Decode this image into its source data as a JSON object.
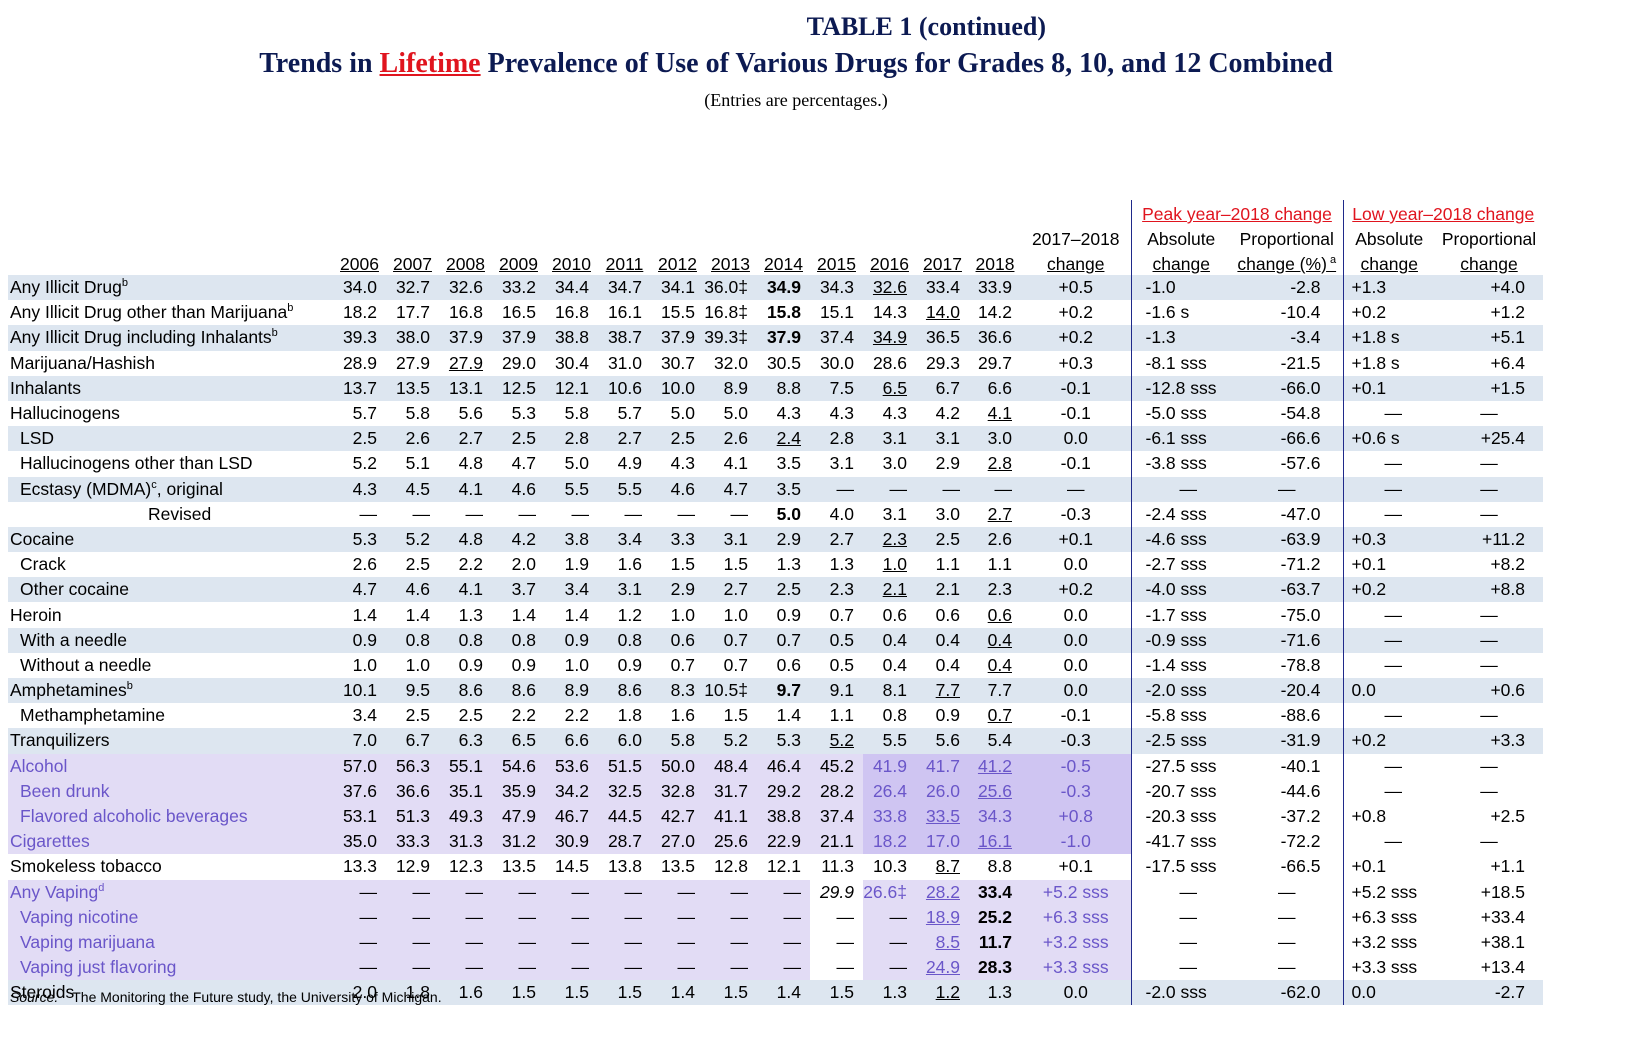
{
  "title": {
    "line1": "TABLE 1 (continued)",
    "line2_pre": "Trends in ",
    "line2_red": "Lifetime",
    "line2_post": " Prevalence of Use of Various Drugs for Grades 8, 10, and 12 Combined",
    "line3": "(Entries are percentages.)"
  },
  "headers": {
    "years": [
      "2006",
      "2007",
      "2008",
      "2009",
      "2010",
      "2011",
      "2012",
      "2013",
      "2014",
      "2015",
      "2016",
      "2017",
      "2018"
    ],
    "change_top": "2017–2018",
    "change_bottom": "change",
    "peak_group": "Peak year–2018 change",
    "low_group": "Low year–2018 change",
    "absolute": "Absolute",
    "proportional": "Proportional",
    "change": "change",
    "prop_change_pct": "change (%)",
    "prop_sup": "a"
  },
  "source_label": "Source.",
  "source_text": "The Monitoring the Future study, the University of Michigan."
}
